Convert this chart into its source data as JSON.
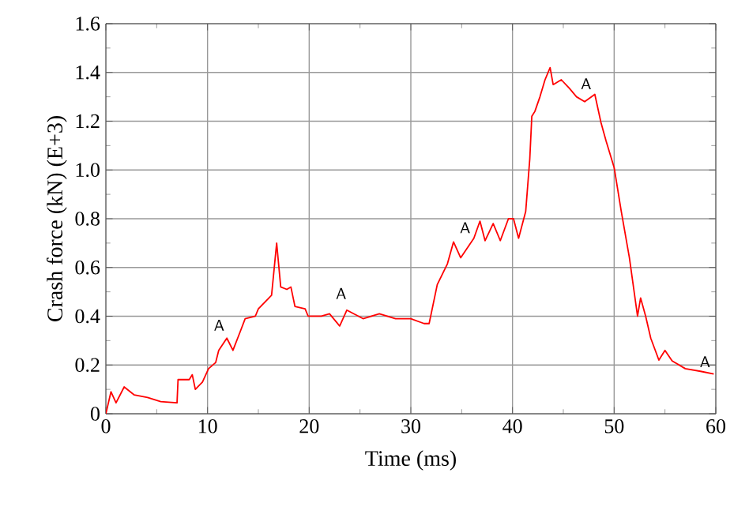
{
  "chart_data": {
    "type": "line",
    "xlabel": "Time (ms)",
    "ylabel": "Crash force (kN) (E+3)",
    "xlim": [
      0,
      60
    ],
    "ylim": [
      0,
      1.6
    ],
    "xticks": [
      0,
      10,
      20,
      30,
      40,
      50,
      60
    ],
    "yticks": [
      0,
      0.2,
      0.4,
      0.6,
      0.8,
      {
        "value": 1,
        "label": "1.0"
      },
      1.2,
      1.4,
      1.6
    ],
    "grid": true,
    "line_style": "solid",
    "marker": "none",
    "series": [
      {
        "color": "#ff0000",
        "x": [
          0,
          0.5,
          1,
          1.8,
          2.8,
          4.1,
          5.4,
          7.0,
          7.1,
          8.2,
          8.5,
          8.8,
          9.5,
          10.1,
          10.8,
          11.1,
          11.9,
          12.5,
          13.2,
          13.7,
          14.7,
          15.0,
          16.3,
          16.8,
          17.2,
          17.8,
          18.2,
          18.6,
          19.6,
          19.9,
          21.2,
          22.0,
          23.0,
          23.7,
          25.3,
          26.9,
          28.5,
          30.0,
          31.3,
          31.8,
          32.6,
          33.6,
          34.2,
          34.9,
          36.2,
          36.8,
          37.3,
          38.1,
          38.8,
          39.6,
          40.1,
          40.6,
          41.3,
          41.7,
          41.9,
          42.2,
          42.7,
          43.2,
          43.7,
          44.0,
          44.8,
          45.6,
          46.3,
          47.1,
          48.1,
          48.7,
          49.2,
          50.0,
          50.7,
          51.5,
          52.3,
          52.6,
          53.1,
          53.6,
          54.4,
          55.0,
          55.7,
          57.0,
          58.5,
          59.8
        ],
        "values": [
          0,
          0.09,
          0.045,
          0.11,
          0.077,
          0.067,
          0.05,
          0.045,
          0.14,
          0.14,
          0.16,
          0.1,
          0.13,
          0.185,
          0.21,
          0.26,
          0.31,
          0.26,
          0.335,
          0.39,
          0.4,
          0.43,
          0.486,
          0.7,
          0.52,
          0.51,
          0.52,
          0.44,
          0.43,
          0.4,
          0.4,
          0.41,
          0.36,
          0.425,
          0.39,
          0.41,
          0.39,
          0.39,
          0.37,
          0.37,
          0.53,
          0.615,
          0.705,
          0.64,
          0.72,
          0.79,
          0.71,
          0.78,
          0.71,
          0.8,
          0.8,
          0.72,
          0.83,
          1.045,
          1.22,
          1.24,
          1.3,
          1.37,
          1.42,
          1.35,
          1.37,
          1.335,
          1.3,
          1.28,
          1.31,
          1.195,
          1.12,
          1.01,
          0.83,
          0.64,
          0.4,
          0.475,
          0.4,
          0.31,
          0.22,
          0.26,
          0.217,
          0.185,
          0.174,
          0.163
        ]
      }
    ],
    "annotations": [
      {
        "text": "A",
        "x": 12,
        "y": 0.32
      },
      {
        "text": "A",
        "x": 24,
        "y": 0.45
      },
      {
        "text": "A",
        "x": 36.2,
        "y": 0.72
      },
      {
        "text": "A",
        "x": 48.1,
        "y": 1.31
      },
      {
        "text": "A",
        "x": 59.8,
        "y": 0.17
      }
    ]
  }
}
